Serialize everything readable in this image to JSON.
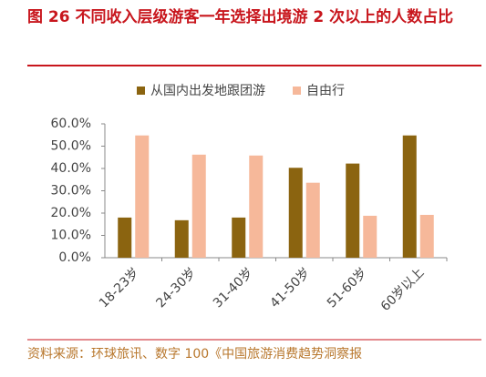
{
  "chart_data": {
    "type": "bar",
    "title": "图 26   不同收入层级游客一年选择出境游 2 次以上的人数占比",
    "categories": [
      "18-23岁",
      "24-30岁",
      "31-40岁",
      "41-50岁",
      "51-60岁",
      "60岁以上"
    ],
    "series": [
      {
        "name": "从国内出发地跟团游",
        "color": "#8b6410",
        "values": [
          18.0,
          16.8,
          18.0,
          40.3,
          42.2,
          54.8
        ]
      },
      {
        "name": "自由行",
        "color": "#f6b89a",
        "values": [
          54.8,
          46.2,
          45.8,
          33.6,
          18.8,
          19.2
        ]
      }
    ],
    "ylim": [
      0,
      60
    ],
    "yticks": [
      {
        "value": 0,
        "label": "0.0%"
      },
      {
        "value": 10,
        "label": "10.0%"
      },
      {
        "value": 20,
        "label": "20.0%"
      },
      {
        "value": 30,
        "label": "30.0%"
      },
      {
        "value": 40,
        "label": "40.0%"
      },
      {
        "value": 50,
        "label": "50.0%"
      },
      {
        "value": 60,
        "label": "60.0%"
      }
    ],
    "legend": "top",
    "source": "资料来源：环球旅讯、数字 100《中国旅游消费趋势洞察报"
  }
}
